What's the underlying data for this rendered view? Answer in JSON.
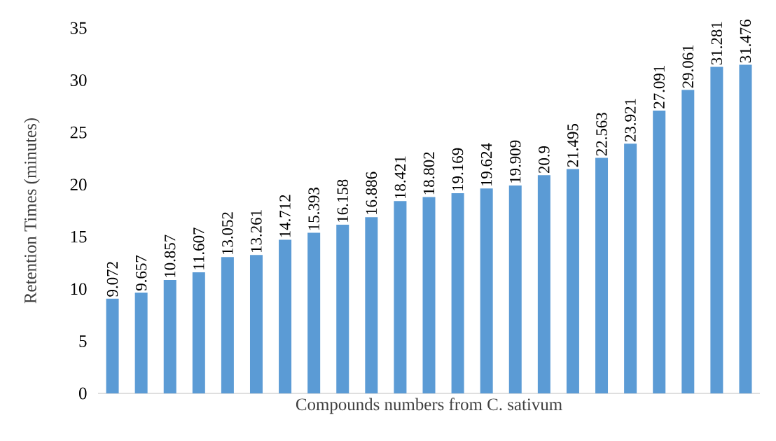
{
  "chart_data": {
    "type": "bar",
    "xlabel": "Compounds numbers from C. sativum",
    "ylabel": "Retention Times (minutes)",
    "categories": [
      null,
      null,
      null,
      null,
      null,
      null,
      null,
      null,
      null,
      null,
      null,
      null,
      null,
      null,
      null,
      null,
      null,
      null,
      null,
      null,
      null,
      null,
      null
    ],
    "values": [
      9.072,
      9.657,
      10.857,
      11.607,
      13.052,
      13.261,
      14.712,
      15.393,
      16.158,
      16.886,
      18.421,
      18.802,
      19.169,
      19.624,
      19.909,
      20.9,
      21.495,
      22.563,
      23.921,
      27.091,
      29.061,
      31.281,
      31.476
    ],
    "color": "#5b9bd5",
    "ylim": [
      0,
      35
    ],
    "yticks": [
      0,
      5,
      10,
      15,
      20,
      25,
      30,
      35
    ],
    "data_labels": true
  }
}
